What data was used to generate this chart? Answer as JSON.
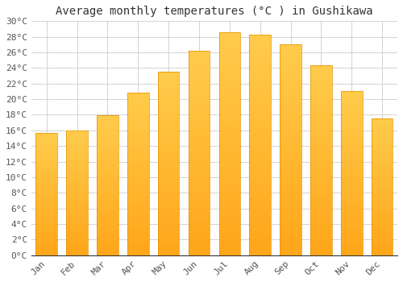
{
  "title": "Average monthly temperatures (°C ) in Gushikawa",
  "months": [
    "Jan",
    "Feb",
    "Mar",
    "Apr",
    "May",
    "Jun",
    "Jul",
    "Aug",
    "Sep",
    "Oct",
    "Nov",
    "Dec"
  ],
  "temperatures": [
    15.7,
    16.0,
    17.9,
    20.8,
    23.5,
    26.2,
    28.6,
    28.3,
    27.0,
    24.3,
    21.0,
    17.5
  ],
  "bar_color_top": "#FFBB33",
  "bar_color_bottom": "#FFA000",
  "bar_edge_color": "#E89000",
  "background_color": "#FFFFFF",
  "grid_color": "#CCCCCC",
  "text_color": "#555555",
  "ylim": [
    0,
    30
  ],
  "ytick_step": 2,
  "title_fontsize": 10,
  "tick_fontsize": 8,
  "font_family": "monospace"
}
